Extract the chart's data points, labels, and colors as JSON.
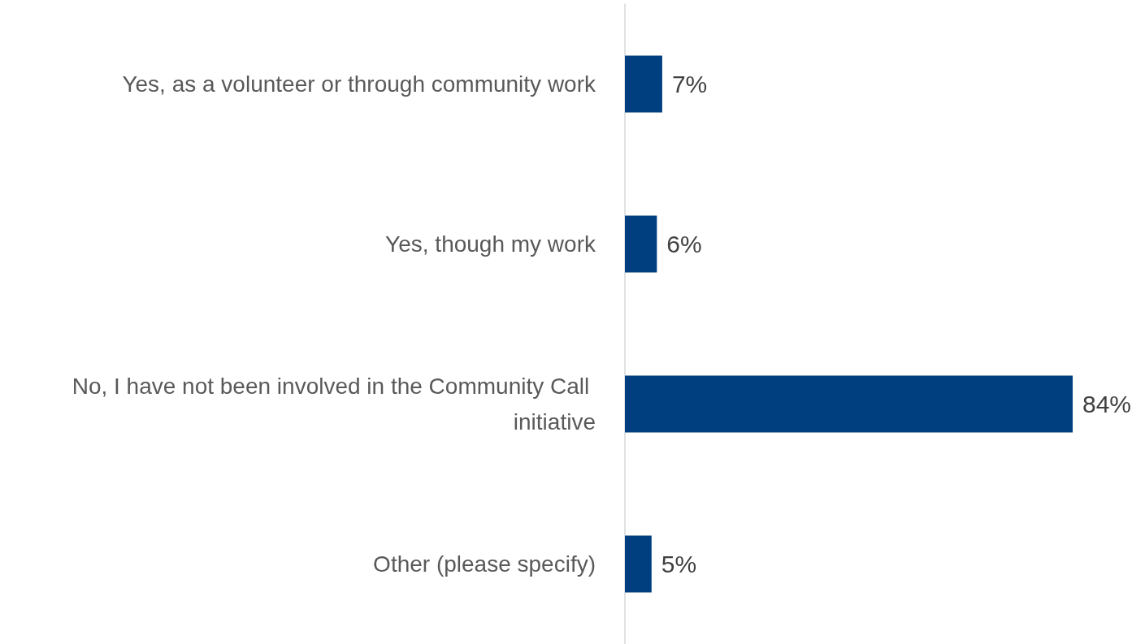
{
  "chart_data": {
    "type": "bar",
    "orientation": "horizontal",
    "categories": [
      "Yes, as a volunteer or through community work",
      "Yes, though my work",
      "No, I have not been involved in the Community Call initiative",
      "Other (please specify)"
    ],
    "values": [
      7,
      6,
      84,
      5
    ],
    "color": "#003f7f",
    "value_labels": [
      "7%",
      "6%",
      "84%",
      "5%"
    ]
  }
}
